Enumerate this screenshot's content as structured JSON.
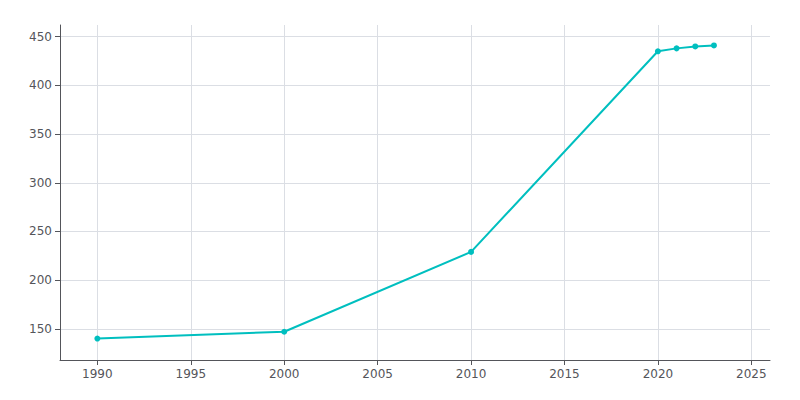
{
  "chart_data": {
    "type": "line",
    "x": [
      1990,
      2000,
      2010,
      2020,
      2021,
      2022,
      2023
    ],
    "values": [
      140,
      147,
      229,
      435,
      438,
      440,
      441
    ],
    "color": "#00BFBF",
    "marker": "circle",
    "xlim": [
      1988,
      2026
    ],
    "ylim": [
      118,
      462
    ],
    "xticks": [
      1990,
      1995,
      2000,
      2005,
      2010,
      2015,
      2020,
      2025
    ],
    "yticks": [
      150,
      200,
      250,
      300,
      350,
      400,
      450
    ],
    "grid": true
  }
}
